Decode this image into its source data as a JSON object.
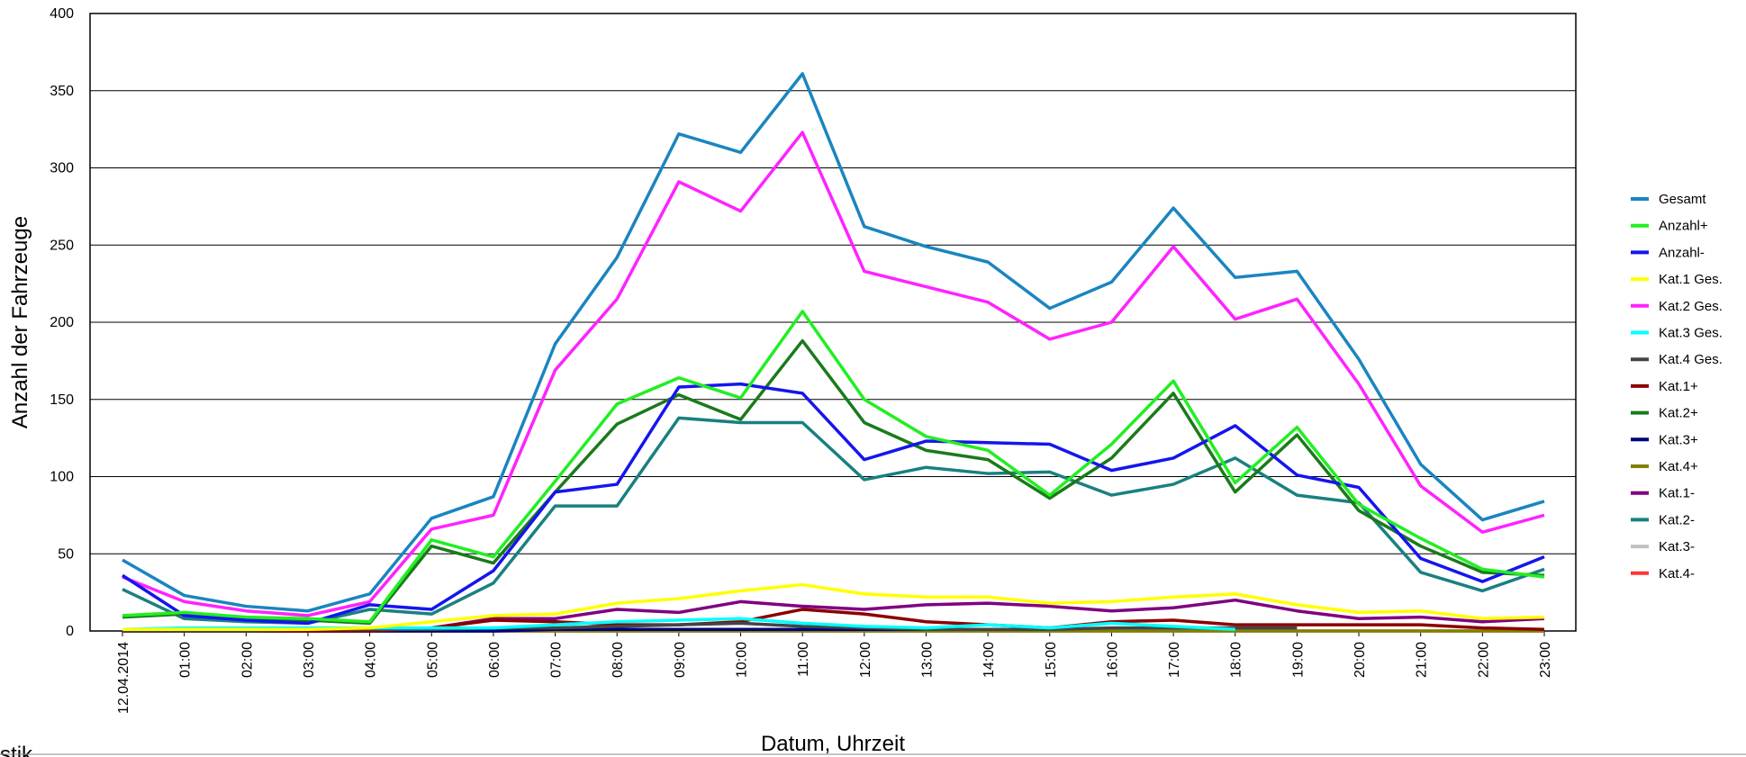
{
  "chart_data": {
    "type": "line",
    "ylabel": "Anzahl der Fahrzeuge",
    "xlabel": "Datum, Uhrzeit",
    "footer": "Statistik",
    "categories": [
      "12.04.2014",
      "01:00",
      "02:00",
      "03:00",
      "04:00",
      "05:00",
      "06:00",
      "07:00",
      "08:00",
      "09:00",
      "10:00",
      "11:00",
      "12:00",
      "13:00",
      "14:00",
      "15:00",
      "16:00",
      "17:00",
      "18:00",
      "19:00",
      "20:00",
      "21:00",
      "22:00",
      "23:00"
    ],
    "ylim": [
      0,
      400
    ],
    "yticks": [
      0,
      50,
      100,
      150,
      200,
      250,
      300,
      350,
      400
    ],
    "grid": true,
    "legend": "right",
    "series": [
      {
        "name": "Gesamt",
        "color": "#1a85c0",
        "values": [
          46,
          23,
          16,
          13,
          24,
          73,
          87,
          186,
          242,
          322,
          310,
          361,
          262,
          249,
          239,
          209,
          226,
          274,
          229,
          233,
          176,
          108,
          72,
          84
        ]
      },
      {
        "name": "Anzahl+",
        "color": "#22ee22",
        "values": [
          10,
          12,
          9,
          8,
          6,
          59,
          48,
          97,
          147,
          164,
          151,
          207,
          150,
          126,
          117,
          88,
          121,
          162,
          96,
          132,
          82,
          60,
          40,
          35
        ]
      },
      {
        "name": "Anzahl-",
        "color": "#1515ee",
        "values": [
          36,
          10,
          7,
          5,
          17,
          14,
          39,
          90,
          95,
          158,
          160,
          154,
          111,
          123,
          122,
          121,
          104,
          112,
          133,
          101,
          93,
          47,
          32,
          48
        ]
      },
      {
        "name": "Kat.1 Ges.",
        "color": "#ffff00",
        "values": [
          1,
          1,
          1,
          1,
          2,
          6,
          10,
          11,
          18,
          21,
          26,
          30,
          24,
          22,
          22,
          18,
          19,
          22,
          24,
          17,
          12,
          13,
          8,
          9
        ]
      },
      {
        "name": "Kat.2 Ges.",
        "color": "#ff22ff",
        "values": [
          35,
          19,
          13,
          10,
          19,
          66,
          75,
          169,
          215,
          291,
          272,
          323,
          233,
          223,
          213,
          189,
          200,
          249,
          202,
          215,
          160,
          94,
          64,
          75
        ]
      },
      {
        "name": "Kat.3 Ges.",
        "color": "#00ffff",
        "values": [
          1,
          2,
          2,
          2,
          2,
          2,
          2,
          4,
          6,
          7,
          8,
          5,
          3,
          2,
          4,
          2,
          5,
          3,
          1,
          null,
          null,
          null,
          null,
          null
        ]
      },
      {
        "name": "Kat.4 Ges.",
        "color": "#444444",
        "values": [
          0,
          0,
          0,
          1,
          1,
          1,
          2,
          2,
          3,
          4,
          5,
          3,
          2,
          1,
          1,
          1,
          2,
          2,
          2,
          2,
          null,
          null,
          null,
          null
        ]
      },
      {
        "name": "Kat.1+",
        "color": "#8b0000",
        "values": [
          0,
          0,
          0,
          0,
          0,
          2,
          7,
          6,
          4,
          4,
          6,
          14,
          11,
          6,
          4,
          2,
          6,
          7,
          4,
          4,
          4,
          4,
          2,
          1
        ]
      },
      {
        "name": "Kat.2+",
        "color": "#1a7a1a",
        "values": [
          9,
          11,
          8,
          7,
          5,
          55,
          44,
          90,
          134,
          153,
          137,
          188,
          135,
          117,
          111,
          86,
          112,
          154,
          90,
          127,
          78,
          55,
          38,
          36
        ]
      },
      {
        "name": "Kat.3+",
        "color": "#000080",
        "values": [
          0,
          0,
          0,
          0,
          0,
          0,
          0,
          1,
          1,
          1,
          1,
          1,
          1,
          1,
          1,
          null,
          null,
          null,
          null,
          null,
          null,
          null,
          null,
          null
        ]
      },
      {
        "name": "Kat.4+",
        "color": "#808000",
        "values": [
          0,
          0,
          0,
          0,
          0,
          0,
          0,
          0,
          0,
          0,
          0,
          0,
          0,
          0,
          0,
          0,
          0,
          0,
          0,
          0,
          0,
          0,
          0,
          0
        ]
      },
      {
        "name": "Kat.1-",
        "color": "#800080",
        "values": [
          1,
          1,
          1,
          1,
          1,
          2,
          8,
          8,
          14,
          12,
          19,
          16,
          14,
          17,
          18,
          16,
          13,
          15,
          20,
          13,
          8,
          9,
          6,
          8
        ]
      },
      {
        "name": "Kat.2-",
        "color": "#1a8080",
        "values": [
          27,
          8,
          6,
          5,
          14,
          11,
          31,
          81,
          81,
          138,
          135,
          135,
          98,
          106,
          102,
          103,
          88,
          95,
          112,
          88,
          83,
          38,
          26,
          40
        ]
      },
      {
        "name": "Kat.3-",
        "color": "#c0c0c0",
        "values": [
          0,
          0,
          0,
          0,
          0,
          0,
          0,
          0,
          0,
          0,
          0,
          0,
          0,
          0,
          0,
          0,
          0,
          0,
          0,
          0,
          0,
          0,
          0,
          0
        ]
      },
      {
        "name": "Kat.4-",
        "color": "#ff3333",
        "values": [
          0,
          0,
          0,
          0,
          0,
          0,
          0,
          0,
          0,
          0,
          0,
          0,
          0,
          0,
          0,
          0,
          0,
          0,
          0,
          0,
          0,
          0,
          0,
          0
        ]
      }
    ]
  }
}
